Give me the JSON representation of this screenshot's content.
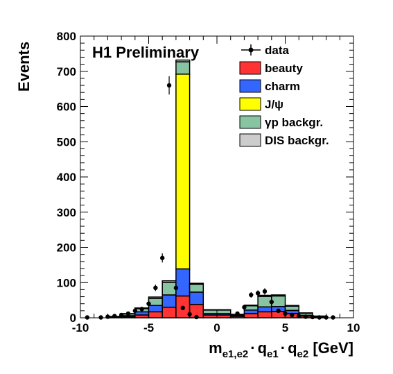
{
  "chart_data": {
    "type": "bar",
    "subtype": "stacked-histogram",
    "annotation": "H1 Preliminary",
    "ylabel": "Events",
    "xlabel": {
      "m": "m",
      "sub1": "e1,e2",
      "dot": "·",
      "q": "q",
      "sub2": "e1",
      "sub3": "e2",
      "unit": " [GeV]"
    },
    "xlim": [
      -10,
      10
    ],
    "ylim": [
      0,
      800
    ],
    "x_ticks": [
      -10,
      -5,
      0,
      5,
      10
    ],
    "y_ticks": [
      0,
      100,
      200,
      300,
      400,
      500,
      600,
      700,
      800
    ],
    "legend_position": "top-right",
    "bin_edges": [
      -8,
      -7,
      -6,
      -5,
      -4,
      -3,
      -2,
      -1,
      1,
      2,
      3,
      4,
      5,
      6,
      7,
      8
    ],
    "series": [
      {
        "name": "beauty",
        "color": "#ff3333",
        "values": [
          1,
          3,
          8,
          17,
          30,
          62,
          38,
          8,
          4,
          12,
          17,
          18,
          12,
          5,
          2
        ]
      },
      {
        "name": "charm",
        "color": "#3366ff",
        "values": [
          1,
          3,
          9,
          18,
          35,
          77,
          35,
          4,
          3,
          10,
          14,
          14,
          9,
          2,
          1
        ]
      },
      {
        "name": "J/ψ",
        "color": "#ffff00",
        "values": [
          0,
          0,
          0,
          0,
          0,
          553,
          0,
          0,
          0,
          0,
          0,
          0,
          0,
          0,
          0
        ]
      },
      {
        "name": "γp backgr.",
        "color": "#88c4a2",
        "values": [
          2,
          5,
          9,
          20,
          35,
          35,
          22,
          10,
          3,
          12,
          30,
          30,
          12,
          6,
          2
        ]
      },
      {
        "name": "DIS backgr.",
        "color": "#cccccc",
        "values": [
          0,
          1,
          2,
          4,
          5,
          5,
          3,
          1,
          0,
          2,
          3,
          3,
          2,
          1,
          0
        ]
      }
    ],
    "data_points": {
      "name": "data",
      "x": [
        -9.5,
        -8.5,
        -8.0,
        -7.5,
        -7.0,
        -6.5,
        -6.0,
        -5.5,
        -5.0,
        -4.5,
        -4.0,
        -3.5,
        -3.0,
        -2.5,
        -2.0,
        -1.5,
        1.5,
        2.0,
        2.5,
        3.0,
        3.5,
        4.0,
        4.5,
        5.0,
        5.5,
        6.0,
        6.5,
        7.0,
        7.5,
        8.0,
        8.5
      ],
      "y": [
        1,
        1,
        3,
        5,
        8,
        12,
        20,
        25,
        40,
        85,
        170,
        660,
        85,
        28,
        10,
        2,
        12,
        30,
        65,
        70,
        75,
        45,
        20,
        12,
        8,
        5,
        3,
        2,
        1,
        1,
        1
      ],
      "yerr": [
        1,
        1,
        2,
        2,
        3,
        3,
        4,
        5,
        6,
        9,
        13,
        26,
        9,
        5,
        3,
        1,
        3,
        5,
        8,
        8,
        9,
        7,
        4,
        3,
        3,
        2,
        2,
        1,
        1,
        1,
        1
      ]
    }
  }
}
